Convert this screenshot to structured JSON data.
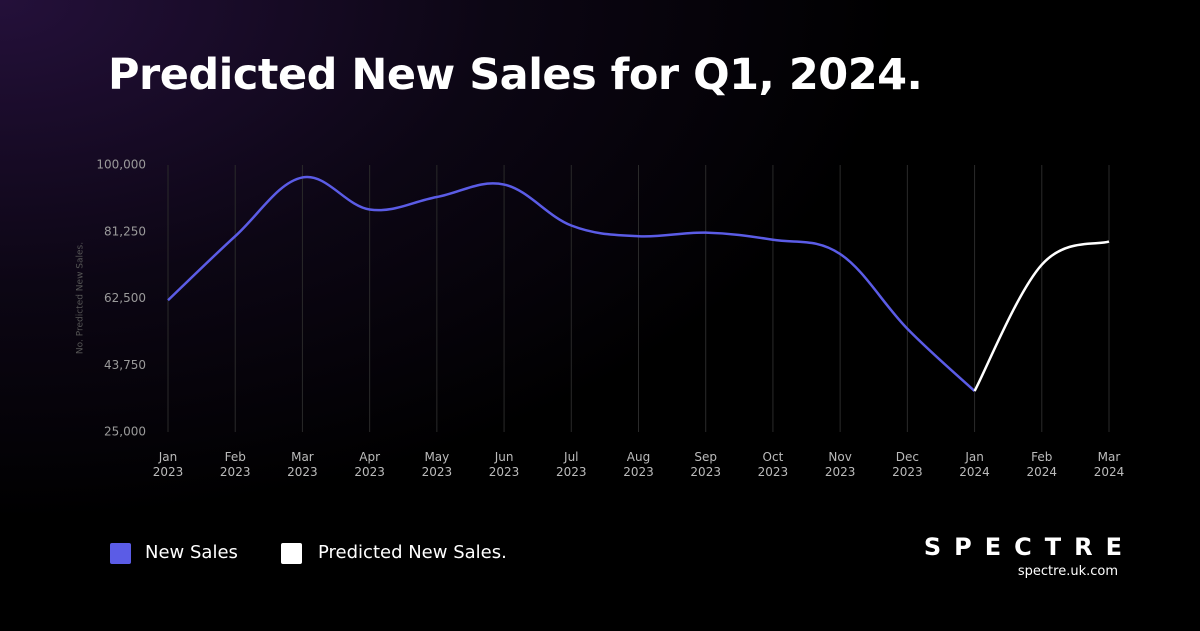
{
  "chart_data": {
    "type": "line",
    "title": "Predicted New Sales for Q1, 2024.",
    "y_label": "No. Predicted New Sales.",
    "categories": [
      "Jan 2023",
      "Feb 2023",
      "Mar 2023",
      "Apr 2023",
      "May 2023",
      "Jun 2023",
      "Jul 2023",
      "Aug 2023",
      "Sep 2023",
      "Oct 2023",
      "Nov 2023",
      "Dec 2023",
      "Jan 2024",
      "Feb 2024",
      "Mar 2024"
    ],
    "series": [
      {
        "name": "New Sales",
        "color": "#5b5ce6",
        "values": [
          62000,
          80000,
          96500,
          87500,
          91000,
          94500,
          83000,
          80000,
          81000,
          79000,
          75000,
          54000,
          36500,
          null,
          null
        ]
      },
      {
        "name": "Predicted New Sales.",
        "color": "#ffffff",
        "values": [
          null,
          null,
          null,
          null,
          null,
          null,
          null,
          null,
          null,
          null,
          null,
          null,
          36500,
          72000,
          78500
        ]
      }
    ],
    "ylim": [
      25000,
      100000
    ],
    "yticks": [
      {
        "value": 25000,
        "label": "25,000"
      },
      {
        "value": 43750,
        "label": "43,750"
      },
      {
        "value": 62500,
        "label": "62,500"
      },
      {
        "value": 81250,
        "label": "81,250"
      },
      {
        "value": 100000,
        "label": "100,000"
      }
    ],
    "grid": true
  },
  "brand": {
    "name": "SPECTRE",
    "url": "spectre.uk.com"
  }
}
